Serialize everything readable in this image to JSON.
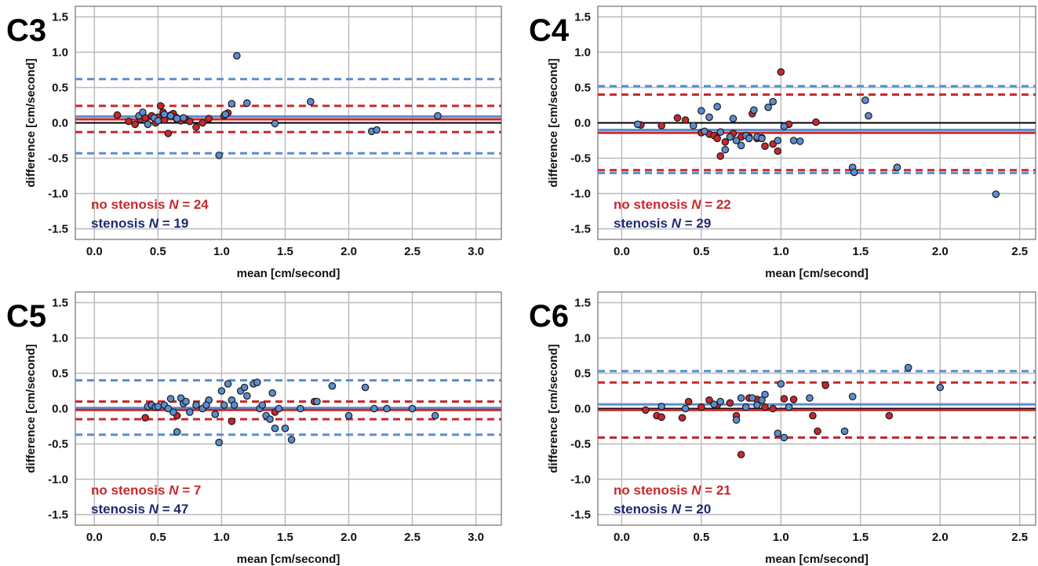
{
  "colors": {
    "no_stenosis": "#C8282D",
    "stenosis": "#5B8ED0",
    "legend_stenosis_text": "#1F2A70",
    "zero_line": "#000000",
    "grid": "#b9b9b9",
    "panel_border": "#555555"
  },
  "chart_data": [
    {
      "type": "scatter",
      "panel_label": "C3",
      "xlabel": "mean [cm/second]",
      "ylabel": "difference [cm/second]",
      "xlim": [
        -0.15,
        3.2
      ],
      "ylim": [
        -1.65,
        1.65
      ],
      "xticks": [
        0.0,
        0.5,
        1.0,
        1.5,
        2.0,
        2.5,
        3.0
      ],
      "xtick_labels": [
        "0.0",
        "0.5",
        "1.0",
        "1.5",
        "2.0",
        "2.5",
        "3.0"
      ],
      "yticks": [
        1.5,
        1.0,
        0.5,
        0.0,
        -0.5,
        -1.0,
        -1.5
      ],
      "ytick_labels": [
        "1.5",
        "1.0",
        "0.5",
        "0.0",
        "-0.5",
        "-1.0",
        "-1.5"
      ],
      "grid": true,
      "legend": [
        {
          "group": "no stenosis",
          "prefix": "no stenosis ",
          "n_symbol": "N",
          "suffix": " = 24"
        },
        {
          "group": "stenosis",
          "prefix": "stenosis ",
          "n_symbol": "N",
          "suffix": " = 19"
        }
      ],
      "bias": {
        "no_stenosis": 0.05,
        "stenosis": 0.09
      },
      "limits_of_agreement": {
        "no_stenosis": [
          0.24,
          -0.13
        ],
        "stenosis": [
          0.62,
          -0.43
        ]
      },
      "series": [
        {
          "group": "no stenosis",
          "x": [
            0.18,
            0.27,
            0.32,
            0.36,
            0.4,
            0.45,
            0.48,
            0.5,
            0.52,
            0.54,
            0.55,
            0.58,
            0.6,
            0.62,
            0.64,
            0.65,
            0.68,
            0.72,
            0.75,
            0.8,
            0.85,
            0.9,
            1.02,
            1.05
          ],
          "y": [
            0.11,
            0.02,
            -0.02,
            0.05,
            0.07,
            0.1,
            0.0,
            0.08,
            0.24,
            0.15,
            0.04,
            -0.15,
            0.11,
            0.13,
            0.08,
            0.05,
            0.03,
            0.05,
            0.02,
            -0.06,
            0.0,
            0.06,
            0.1,
            0.14
          ]
        },
        {
          "group": "stenosis",
          "x": [
            0.35,
            0.38,
            0.42,
            0.47,
            0.5,
            0.55,
            0.6,
            0.65,
            0.7,
            0.98,
            1.03,
            1.08,
            1.12,
            1.2,
            1.42,
            1.7,
            2.18,
            2.22,
            2.7
          ],
          "y": [
            0.1,
            0.15,
            -0.02,
            0.07,
            0.03,
            0.12,
            0.1,
            0.06,
            0.07,
            -0.46,
            0.12,
            0.27,
            0.95,
            0.28,
            -0.01,
            0.3,
            -0.12,
            -0.1,
            0.1
          ]
        }
      ]
    },
    {
      "type": "scatter",
      "panel_label": "C4",
      "xlabel": "mean [cm/second]",
      "ylabel": "difference [cm/second]",
      "xlim": [
        -0.15,
        2.6
      ],
      "ylim": [
        -1.65,
        1.65
      ],
      "xticks": [
        0.0,
        0.5,
        1.0,
        1.5,
        2.0,
        2.5
      ],
      "xtick_labels": [
        "0.0",
        "0.5",
        "1.0",
        "1.5",
        "2.0",
        "2.5"
      ],
      "yticks": [
        1.5,
        1.0,
        0.5,
        0.0,
        -0.5,
        -1.0,
        -1.5
      ],
      "ytick_labels": [
        "1.5",
        "1.0",
        "0.5",
        "0.0",
        "-0.5",
        "-1.0",
        "-1.5"
      ],
      "grid": true,
      "legend": [
        {
          "group": "no stenosis",
          "prefix": "no stenosis ",
          "n_symbol": "N",
          "suffix": " = 22"
        },
        {
          "group": "stenosis",
          "prefix": "stenosis ",
          "n_symbol": "N",
          "suffix": " = 29"
        }
      ],
      "bias": {
        "no_stenosis": -0.14,
        "stenosis": -0.1
      },
      "limits_of_agreement": {
        "no_stenosis": [
          0.4,
          -0.67
        ],
        "stenosis": [
          0.52,
          -0.71
        ]
      },
      "series": [
        {
          "group": "no stenosis",
          "x": [
            0.12,
            0.25,
            0.35,
            0.4,
            0.5,
            0.55,
            0.58,
            0.6,
            0.62,
            0.65,
            0.7,
            0.75,
            0.8,
            0.82,
            0.85,
            0.88,
            0.9,
            0.95,
            0.98,
            1.0,
            1.05,
            1.22
          ],
          "y": [
            -0.03,
            -0.04,
            0.07,
            0.04,
            -0.14,
            -0.16,
            -0.18,
            -0.22,
            -0.47,
            -0.27,
            -0.15,
            -0.2,
            -0.2,
            0.13,
            -0.22,
            -0.21,
            -0.33,
            -0.3,
            -0.4,
            0.72,
            -0.02,
            0.01
          ]
        },
        {
          "group": "stenosis",
          "x": [
            0.1,
            0.45,
            0.5,
            0.52,
            0.55,
            0.6,
            0.62,
            0.65,
            0.68,
            0.7,
            0.72,
            0.75,
            0.78,
            0.8,
            0.83,
            0.85,
            0.88,
            0.92,
            0.95,
            0.98,
            1.02,
            1.08,
            1.12,
            1.45,
            1.46,
            1.53,
            1.55,
            1.73,
            2.35
          ],
          "y": [
            -0.02,
            -0.04,
            0.17,
            -0.12,
            0.08,
            0.23,
            -0.13,
            -0.38,
            -0.2,
            0.06,
            -0.25,
            -0.32,
            -0.18,
            -0.22,
            0.18,
            -0.2,
            -0.22,
            0.22,
            0.3,
            -0.25,
            -0.05,
            -0.25,
            -0.26,
            -0.63,
            -0.7,
            0.32,
            0.1,
            -0.63,
            -1.01
          ]
        }
      ]
    },
    {
      "type": "scatter",
      "panel_label": "C5",
      "xlabel": "mean [cm/second]",
      "ylabel": "difference [cm/second]",
      "xlim": [
        -0.15,
        3.2
      ],
      "ylim": [
        -1.65,
        1.65
      ],
      "xticks": [
        0.0,
        0.5,
        1.0,
        1.5,
        2.0,
        2.5,
        3.0
      ],
      "xtick_labels": [
        "0.0",
        "0.5",
        "1.0",
        "1.5",
        "2.0",
        "2.5",
        "3.0"
      ],
      "yticks": [
        1.5,
        1.0,
        0.5,
        0.0,
        -0.5,
        -1.0,
        -1.5
      ],
      "ytick_labels": [
        "1.5",
        "1.0",
        "0.5",
        "0.0",
        "-0.5",
        "-1.0",
        "-1.5"
      ],
      "grid": true,
      "legend": [
        {
          "group": "no stenosis",
          "prefix": "no stenosis ",
          "n_symbol": "N",
          "suffix": " = 7"
        },
        {
          "group": "stenosis",
          "prefix": "stenosis ",
          "n_symbol": "N",
          "suffix": " = 47"
        }
      ],
      "bias": {
        "no_stenosis": -0.02,
        "stenosis": 0.01
      },
      "limits_of_agreement": {
        "no_stenosis": [
          0.1,
          -0.15
        ],
        "stenosis": [
          0.4,
          -0.37
        ]
      },
      "series": [
        {
          "group": "no stenosis",
          "x": [
            0.4,
            0.65,
            0.7,
            0.95,
            1.08,
            1.42,
            1.73
          ],
          "y": [
            -0.13,
            -0.1,
            0.1,
            -0.08,
            -0.18,
            -0.05,
            0.1
          ]
        },
        {
          "group": "stenosis",
          "x": [
            0.42,
            0.45,
            0.48,
            0.5,
            0.55,
            0.6,
            0.62,
            0.65,
            0.68,
            0.7,
            0.72,
            0.75,
            0.8,
            0.85,
            0.9,
            0.95,
            0.98,
            1.0,
            1.02,
            1.05,
            1.08,
            1.1,
            1.15,
            1.18,
            1.2,
            1.25,
            1.28,
            1.3,
            1.35,
            1.38,
            1.4,
            1.42,
            1.45,
            1.5,
            1.55,
            1.62,
            1.75,
            1.87,
            2.0,
            2.13,
            2.2,
            2.3,
            2.5,
            2.68,
            0.88,
            1.32,
            0.58
          ],
          "y": [
            0.03,
            0.05,
            0.02,
            0.03,
            0.05,
            0.14,
            -0.05,
            -0.33,
            0.15,
            0.07,
            0.1,
            -0.05,
            0.05,
            0.0,
            0.12,
            -0.08,
            -0.48,
            0.25,
            0.05,
            0.35,
            0.12,
            0.05,
            0.25,
            0.3,
            0.18,
            0.35,
            0.37,
            0.0,
            -0.1,
            -0.15,
            0.22,
            -0.28,
            0.0,
            -0.28,
            -0.44,
            0.0,
            0.1,
            0.32,
            -0.1,
            0.3,
            0.0,
            0.0,
            0.0,
            -0.1,
            0.05,
            0.05,
            0.0
          ]
        }
      ]
    },
    {
      "type": "scatter",
      "panel_label": "C6",
      "xlabel": "mean [cm/second]",
      "ylabel": "difference [cm/second]",
      "xlim": [
        -0.15,
        2.6
      ],
      "ylim": [
        -1.65,
        1.65
      ],
      "xticks": [
        0.0,
        0.5,
        1.0,
        1.5,
        2.0,
        2.5
      ],
      "xtick_labels": [
        "0.0",
        "0.5",
        "1.0",
        "1.5",
        "2.0",
        "2.5"
      ],
      "yticks": [
        1.5,
        1.0,
        0.5,
        0.0,
        -0.5,
        -1.0,
        -1.5
      ],
      "ytick_labels": [
        "1.5",
        "1.0",
        "0.5",
        "0.0",
        "-0.5",
        "-1.0",
        "-1.5"
      ],
      "grid": true,
      "legend": [
        {
          "group": "no stenosis",
          "prefix": "no stenosis ",
          "n_symbol": "N",
          "suffix": " = 21"
        },
        {
          "group": "stenosis",
          "prefix": "stenosis ",
          "n_symbol": "N",
          "suffix": " = 20"
        }
      ],
      "bias": {
        "no_stenosis": -0.02,
        "stenosis": 0.06
      },
      "limits_of_agreement": {
        "no_stenosis": [
          0.37,
          -0.41
        ],
        "stenosis": [
          0.53,
          -0.41
        ]
      },
      "series": [
        {
          "group": "no stenosis",
          "x": [
            0.15,
            0.22,
            0.25,
            0.38,
            0.42,
            0.5,
            0.55,
            0.6,
            0.68,
            0.72,
            0.75,
            0.8,
            0.85,
            0.9,
            0.95,
            1.02,
            1.08,
            1.2,
            1.23,
            1.28,
            1.68
          ],
          "y": [
            -0.02,
            -0.1,
            -0.12,
            -0.13,
            0.1,
            0.02,
            0.12,
            0.05,
            0.08,
            -0.1,
            -0.65,
            0.15,
            0.13,
            0.02,
            0.0,
            0.14,
            0.13,
            -0.1,
            -0.32,
            0.33,
            -0.1
          ]
        },
        {
          "group": "stenosis",
          "x": [
            0.25,
            0.4,
            0.58,
            0.62,
            0.72,
            0.75,
            0.78,
            0.82,
            0.85,
            0.88,
            0.9,
            0.98,
            1.0,
            1.02,
            1.05,
            1.18,
            1.4,
            1.45,
            1.8,
            2.0
          ],
          "y": [
            0.03,
            0.0,
            0.06,
            0.1,
            -0.16,
            0.15,
            0.02,
            0.15,
            0.05,
            0.12,
            0.2,
            -0.35,
            0.35,
            -0.41,
            0.02,
            0.15,
            -0.32,
            0.17,
            0.58,
            0.3
          ]
        }
      ]
    }
  ]
}
